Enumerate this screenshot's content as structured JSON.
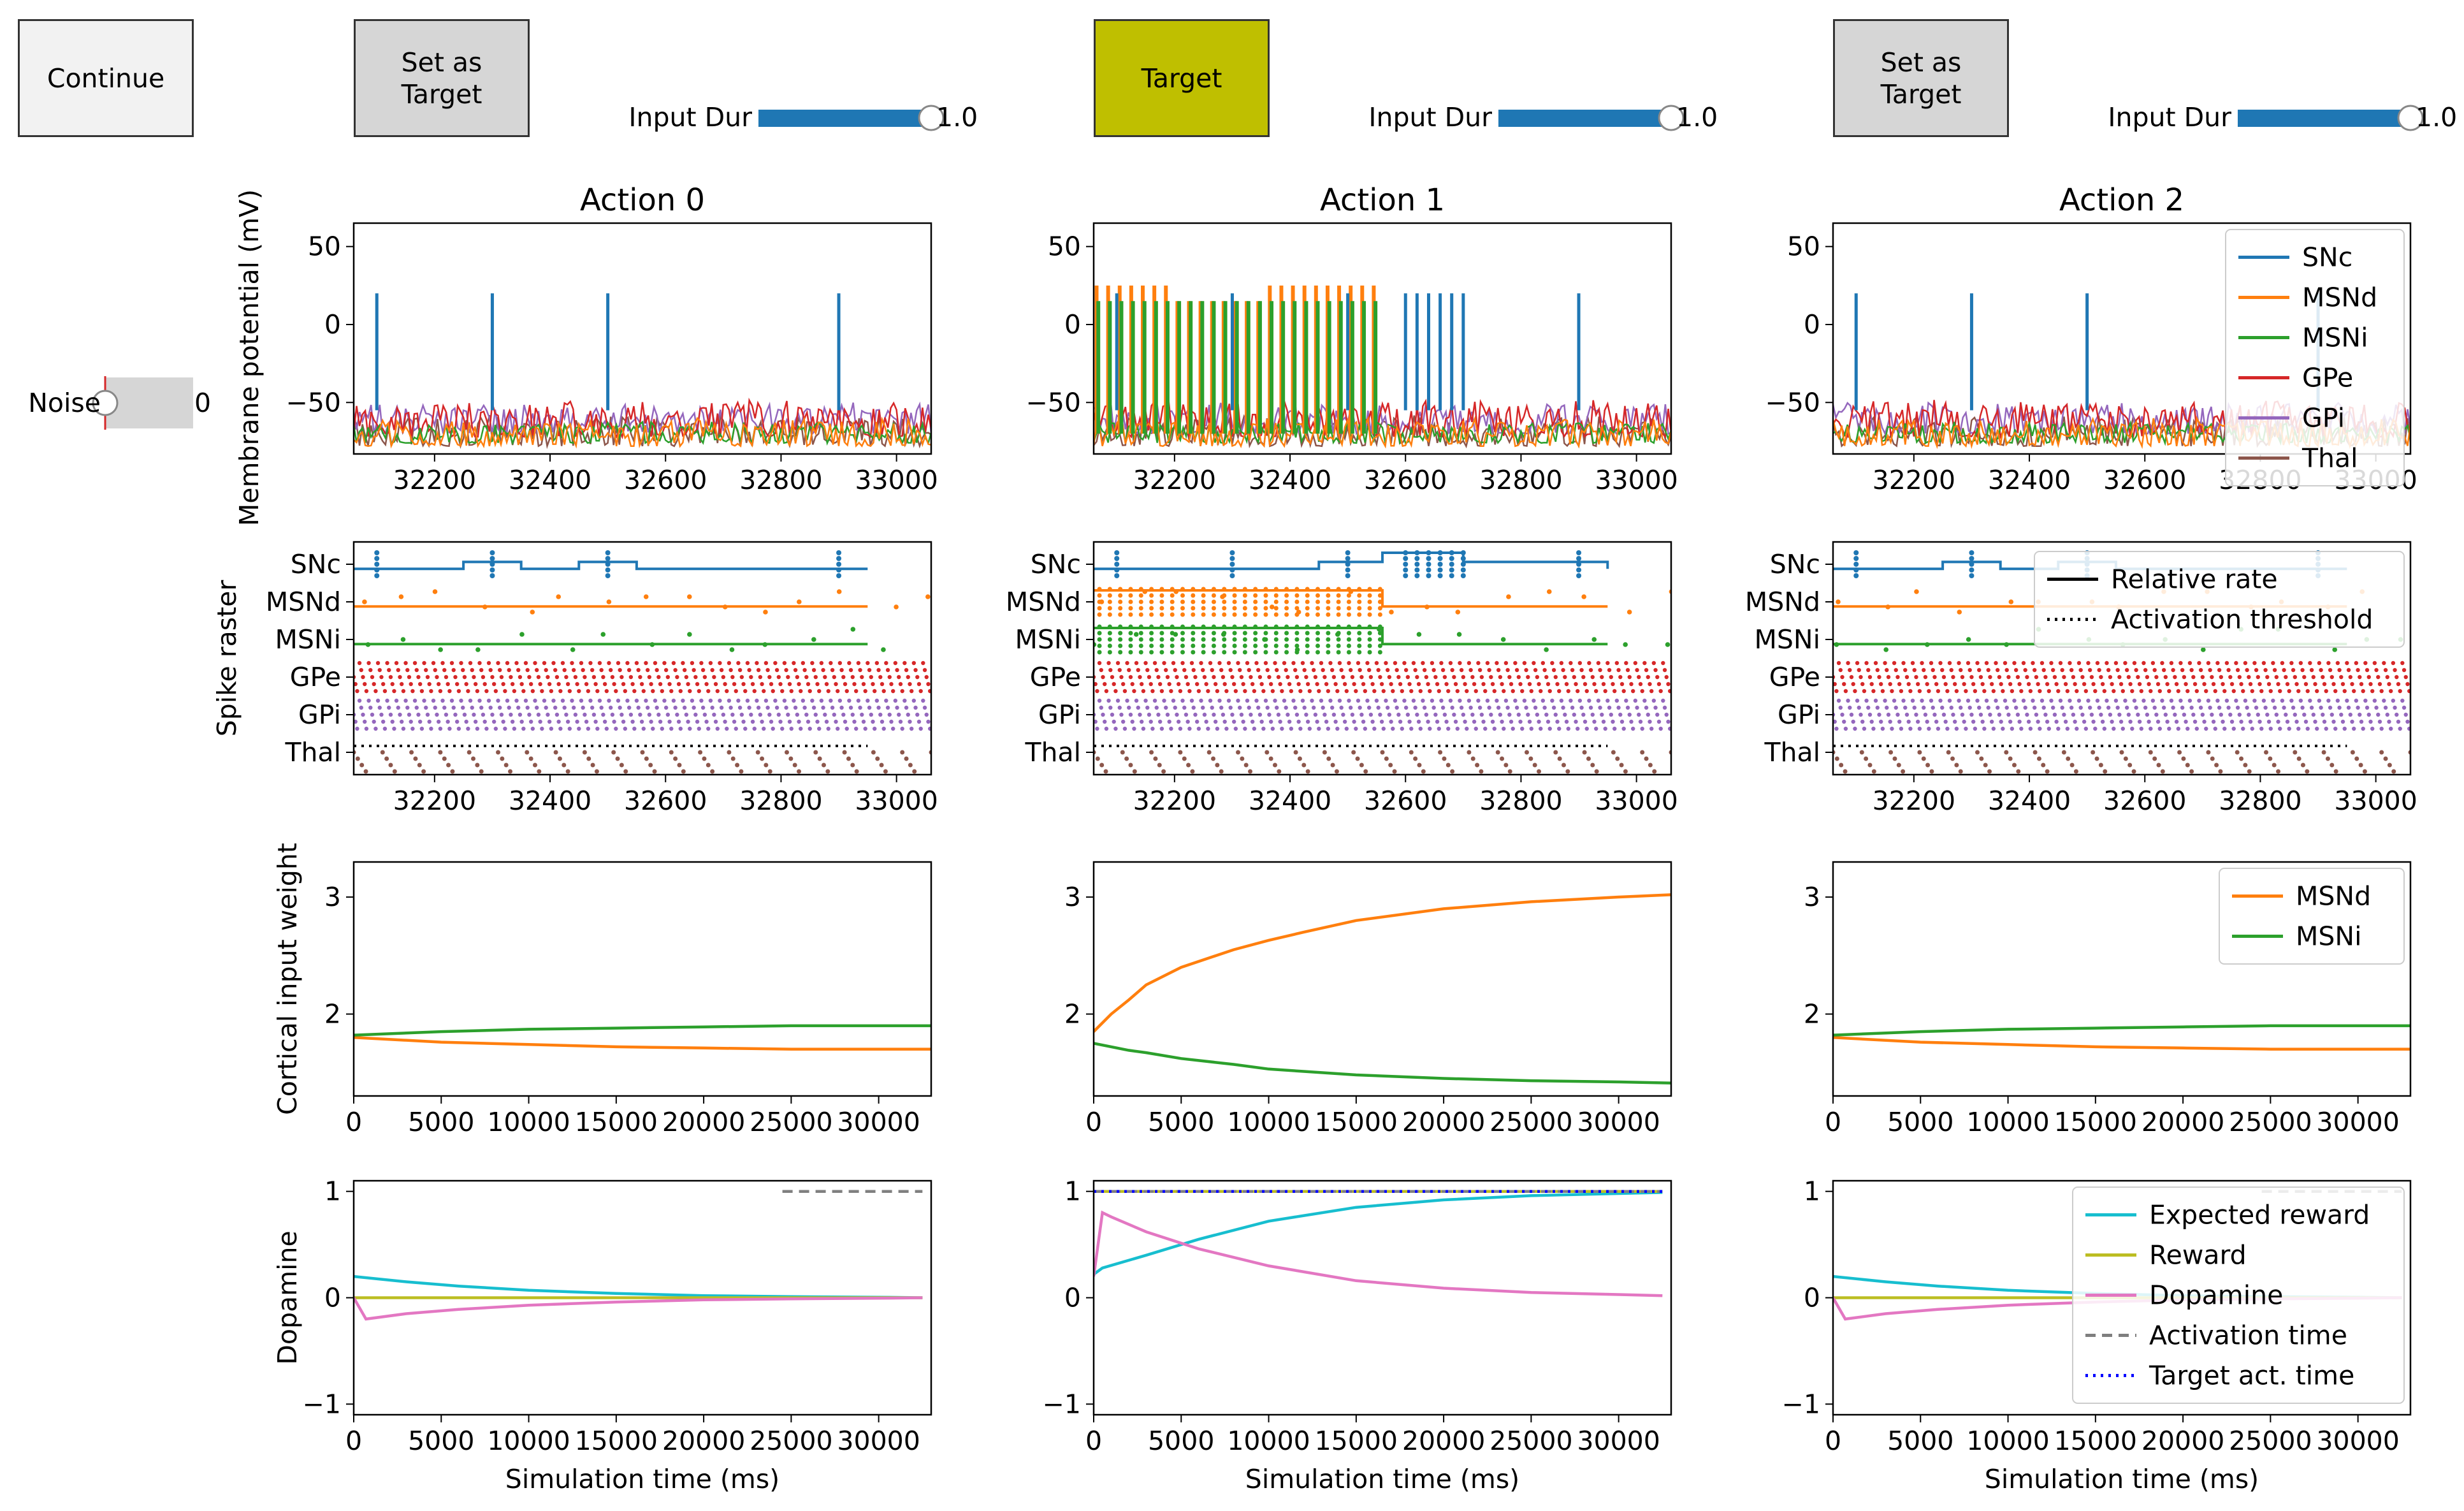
{
  "controls": {
    "continue_label": "Continue",
    "noise_label": "Noise",
    "noise_value": "0",
    "noise_level": 0,
    "actions": [
      {
        "button_label": "Set as\nTarget",
        "is_target": false,
        "input_dur_label": "Input Dur",
        "input_dur_value": "1.0",
        "input_dur_level": 1.0
      },
      {
        "button_label": "Target",
        "is_target": true,
        "input_dur_label": "Input Dur",
        "input_dur_value": "1.0",
        "input_dur_level": 1.0
      },
      {
        "button_label": "Set as\nTarget",
        "is_target": false,
        "input_dur_label": "Input Dur",
        "input_dur_value": "1.0",
        "input_dur_level": 1.0
      }
    ]
  },
  "colors": {
    "SNc": "#1f77b4",
    "MSNd": "#ff7f0e",
    "MSNi": "#2ca02c",
    "GPe": "#d62728",
    "GPi": "#9467bd",
    "Thal": "#8c564b",
    "expected_reward": "#17becf",
    "reward": "#bcbd22",
    "dopamine": "#e377c2",
    "activation_time": "#7f7f7f",
    "target_act_time": "#0000ff",
    "target_button": "#bfbf00",
    "slider": "#1f77b4"
  },
  "chart_data": [
    {
      "type": "line",
      "row": "membrane",
      "ylabel": "Membrane potential (mV)",
      "titles": [
        "Action 0",
        "Action 1",
        "Action 2"
      ],
      "xlim": [
        32060,
        33060
      ],
      "ylim": [
        -83,
        65
      ],
      "xticks": [
        32200,
        32400,
        32600,
        32800,
        33000
      ],
      "yticks": [
        -50,
        0,
        50
      ],
      "legend": {
        "panel": 2,
        "position": "top-right",
        "entries": [
          "SNc",
          "MSNd",
          "MSNi",
          "GPe",
          "GPi",
          "Thal"
        ]
      },
      "snc_spike_times": [
        [
          32100,
          32300,
          32500,
          32900
        ],
        [
          32100,
          32300,
          32500,
          32600,
          32620,
          32640,
          32660,
          32680,
          32700,
          32900
        ],
        [
          32100,
          32300,
          32500,
          32900
        ]
      ],
      "msn_burst": {
        "panel": 1,
        "x": [
          32060,
          32560
        ],
        "MSNd_peak": 25,
        "MSNi_peak": 15
      },
      "baseline_band": [
        -78,
        -48
      ]
    },
    {
      "type": "scatter",
      "row": "raster",
      "ylabel": "Spike raster",
      "xlim": [
        32060,
        33060
      ],
      "xticks": [
        32200,
        32400,
        32600,
        32800,
        33000
      ],
      "rows": [
        "SNc",
        "MSNd",
        "MSNi",
        "GPe",
        "GPi",
        "Thal"
      ],
      "legend": {
        "panel": 2,
        "position": "top-right",
        "entries": [
          "Relative rate",
          "Activation threshold"
        ]
      },
      "activation_threshold": 0.15
    },
    {
      "type": "line",
      "row": "weights",
      "ylabel": "Cortical input weight",
      "xlim": [
        0,
        33000
      ],
      "ylim": [
        1.3,
        3.3
      ],
      "xticks": [
        0,
        5000,
        10000,
        15000,
        20000,
        25000,
        30000
      ],
      "yticks": [
        2,
        3
      ],
      "legend": {
        "panel": 2,
        "position": "top-right",
        "entries": [
          "MSNd",
          "MSNi"
        ]
      },
      "series": [
        [
          {
            "name": "MSNd",
            "x": [
              0,
              5000,
              10000,
              15000,
              20000,
              25000,
              30000,
              33000
            ],
            "values": [
              1.8,
              1.76,
              1.74,
              1.72,
              1.71,
              1.7,
              1.7,
              1.7
            ]
          },
          {
            "name": "MSNi",
            "x": [
              0,
              5000,
              10000,
              15000,
              20000,
              25000,
              30000,
              33000
            ],
            "values": [
              1.82,
              1.85,
              1.87,
              1.88,
              1.89,
              1.9,
              1.9,
              1.9
            ]
          }
        ],
        [
          {
            "name": "MSNd",
            "x": [
              0,
              1000,
              2000,
              3000,
              5000,
              8000,
              10000,
              12000,
              15000,
              20000,
              25000,
              30000,
              33000
            ],
            "values": [
              1.85,
              2.0,
              2.12,
              2.25,
              2.4,
              2.55,
              2.63,
              2.7,
              2.8,
              2.9,
              2.96,
              3.0,
              3.02
            ]
          },
          {
            "name": "MSNi",
            "x": [
              0,
              1000,
              2000,
              3000,
              5000,
              8000,
              10000,
              12000,
              15000,
              20000,
              25000,
              30000,
              33000
            ],
            "values": [
              1.75,
              1.72,
              1.69,
              1.67,
              1.62,
              1.57,
              1.53,
              1.51,
              1.48,
              1.45,
              1.43,
              1.42,
              1.41
            ]
          }
        ],
        [
          {
            "name": "MSNd",
            "x": [
              0,
              5000,
              10000,
              15000,
              20000,
              25000,
              30000,
              33000
            ],
            "values": [
              1.8,
              1.76,
              1.74,
              1.72,
              1.71,
              1.7,
              1.7,
              1.7
            ]
          },
          {
            "name": "MSNi",
            "x": [
              0,
              5000,
              10000,
              15000,
              20000,
              25000,
              30000,
              33000
            ],
            "values": [
              1.82,
              1.85,
              1.87,
              1.88,
              1.89,
              1.9,
              1.9,
              1.9
            ]
          }
        ]
      ]
    },
    {
      "type": "line",
      "row": "dopamine",
      "ylabel": "Dopamine",
      "xlabel": "Simulation time (ms)",
      "xlim": [
        0,
        33000
      ],
      "ylim": [
        -1.1,
        1.1
      ],
      "xticks": [
        0,
        5000,
        10000,
        15000,
        20000,
        25000,
        30000
      ],
      "yticks": [
        -1,
        0,
        1
      ],
      "legend": {
        "panel": 2,
        "position": "top-right",
        "entries": [
          "Expected reward",
          "Reward",
          "Dopamine",
          "Activation time",
          "Target act. time"
        ]
      },
      "series": [
        [
          {
            "name": "Expected reward",
            "x": [
              0,
              3000,
              6000,
              10000,
              15000,
              20000,
              25000,
              30000,
              32500
            ],
            "values": [
              0.2,
              0.15,
              0.11,
              0.07,
              0.04,
              0.02,
              0.01,
              0.005,
              0.0
            ]
          },
          {
            "name": "Reward",
            "x": [
              0,
              32500
            ],
            "values": [
              0,
              0
            ]
          },
          {
            "name": "Dopamine",
            "x": [
              0,
              700,
              3000,
              6000,
              10000,
              15000,
              20000,
              25000,
              30000,
              32500
            ],
            "values": [
              0,
              -0.2,
              -0.15,
              -0.11,
              -0.07,
              -0.04,
              -0.02,
              -0.01,
              -0.005,
              0
            ]
          },
          {
            "name": "Activation time",
            "x": [
              24500,
              32500
            ],
            "values": [
              1,
              1
            ]
          }
        ],
        [
          {
            "name": "Expected reward",
            "x": [
              0,
              500,
              3000,
              6000,
              10000,
              15000,
              20000,
              25000,
              30000,
              32500
            ],
            "values": [
              0.22,
              0.28,
              0.4,
              0.55,
              0.72,
              0.85,
              0.92,
              0.96,
              0.98,
              0.99
            ]
          },
          {
            "name": "Reward",
            "x": [
              0,
              32500
            ],
            "values": [
              1,
              1
            ]
          },
          {
            "name": "Dopamine",
            "x": [
              0,
              500,
              1000,
              3000,
              6000,
              10000,
              15000,
              20000,
              25000,
              30000,
              32500
            ],
            "values": [
              0.2,
              0.8,
              0.76,
              0.62,
              0.46,
              0.3,
              0.16,
              0.09,
              0.05,
              0.03,
              0.02
            ]
          },
          {
            "name": "Activation time",
            "x": [
              0,
              32500
            ],
            "values": [
              1,
              1
            ]
          },
          {
            "name": "Target act. time",
            "x": [
              0,
              32500
            ],
            "values": [
              1,
              1
            ]
          }
        ],
        [
          {
            "name": "Expected reward",
            "x": [
              0,
              3000,
              6000,
              10000,
              15000,
              20000,
              25000,
              30000,
              32500
            ],
            "values": [
              0.2,
              0.15,
              0.11,
              0.07,
              0.04,
              0.02,
              0.01,
              0.005,
              0.0
            ]
          },
          {
            "name": "Reward",
            "x": [
              0,
              32500
            ],
            "values": [
              0,
              0
            ]
          },
          {
            "name": "Dopamine",
            "x": [
              0,
              700,
              3000,
              6000,
              10000,
              15000,
              20000,
              25000,
              30000,
              32500
            ],
            "values": [
              0,
              -0.2,
              -0.15,
              -0.11,
              -0.07,
              -0.04,
              -0.02,
              -0.01,
              -0.005,
              0
            ]
          },
          {
            "name": "Activation time",
            "x": [
              24500,
              32500
            ],
            "values": [
              1,
              1
            ]
          }
        ]
      ]
    }
  ]
}
